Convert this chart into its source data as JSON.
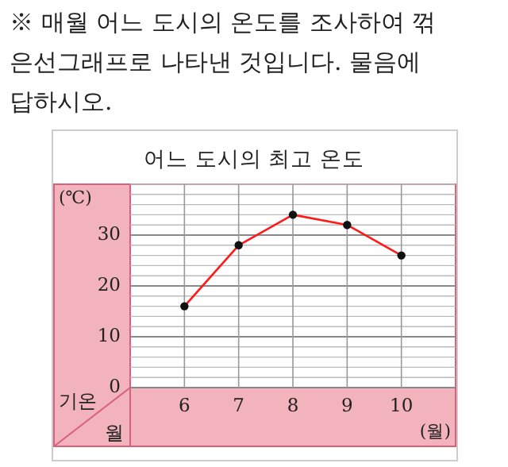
{
  "chart_data": {
    "type": "line",
    "title": "어느 도시의 최고 온도",
    "annotations": [
      "※ 매월 어느 도시의 온도를 조사하여 꺾은선그래프로 나타낸 것입니다. 물음에 답하시오.",
      "기온",
      "월"
    ],
    "ylabel": "(℃)",
    "xlabel": "(월)",
    "categories": [
      "6",
      "7",
      "8",
      "9",
      "10"
    ],
    "series": [
      {
        "color": "#ff1a1a",
        "values": [
          16,
          28,
          34,
          32,
          26
        ]
      }
    ],
    "marker": "circle",
    "grid": true,
    "ylim": [
      0,
      40
    ],
    "yticks": [
      0,
      {
        "value": 2,
        "label": null
      },
      {
        "value": 4,
        "label": null
      },
      {
        "value": 6,
        "label": null
      },
      {
        "value": 8,
        "label": null
      },
      10,
      {
        "value": 12,
        "label": null
      },
      {
        "value": 14,
        "label": null
      },
      {
        "value": 16,
        "label": null
      },
      {
        "value": 18,
        "label": null
      },
      20,
      {
        "value": 22,
        "label": null
      },
      {
        "value": 24,
        "label": null
      },
      {
        "value": 26,
        "label": null
      },
      {
        "value": 28,
        "label": null
      },
      30,
      {
        "value": 32,
        "label": null
      },
      {
        "value": 34,
        "label": null
      },
      {
        "value": 36,
        "label": null
      },
      {
        "value": 38,
        "label": null
      },
      {
        "value": 40,
        "label": null
      }
    ]
  }
}
